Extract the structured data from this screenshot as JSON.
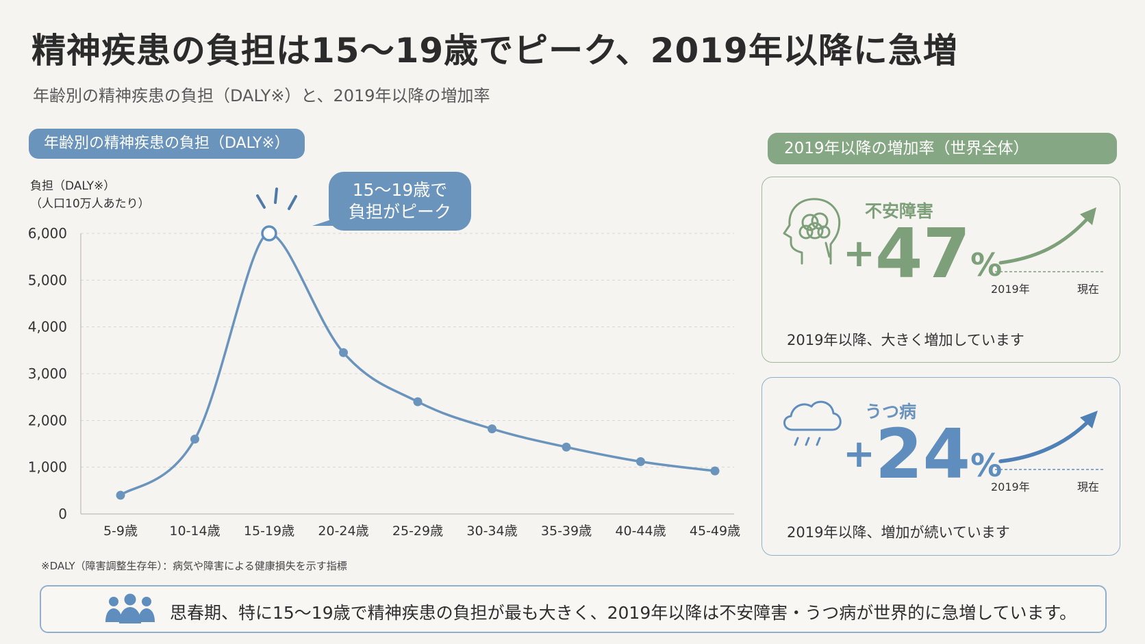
{
  "header": {
    "title": "精神疾患の負担は15～19歳でピーク、2019年以降に急増",
    "subtitle": "年齢別の精神疾患の負担（DALY※）と、2019年以降の増加率"
  },
  "left_panel": {
    "pill": "年齢別の精神疾患の負担（DALY※）",
    "ylabel_line1": "負担（DALY※）",
    "ylabel_line2": "（人口10万人あたり）",
    "callout_line1": "15～19歳で",
    "callout_line2": "負担がピーク",
    "footnote": "※DALY（障害調整生存年）：病気や障害による健康損失を示す指標"
  },
  "chart_data": {
    "type": "line",
    "categories": [
      "5-9歳",
      "10-14歳",
      "15-19歳",
      "20-24歳",
      "25-29歳",
      "30-34歳",
      "35-39歳",
      "40-44歳",
      "45-49歳"
    ],
    "values": [
      400,
      1600,
      6000,
      3450,
      2400,
      1820,
      1430,
      1120,
      920
    ],
    "ylim": [
      0,
      6000
    ],
    "yticks": [
      0,
      1000,
      2000,
      3000,
      4000,
      5000,
      6000
    ],
    "ytick_labels": [
      "0",
      "1,000",
      "2,000",
      "3,000",
      "4,000",
      "5,000",
      "6,000"
    ],
    "grid": true,
    "peak_index": 2,
    "color": "#6b94bd"
  },
  "right_panel": {
    "pill": "2019年以降の増加率（世界全体）",
    "cards": [
      {
        "label": "不安障害",
        "sign": "+",
        "number": "47",
        "unit": "%",
        "from_label": "2019年",
        "to_label": "現在",
        "desc": "2019年以降、大きく増加しています",
        "icon": "head-brain-icon",
        "color": "#7d9f79"
      },
      {
        "label": "うつ病",
        "sign": "+",
        "number": "24",
        "unit": "%",
        "from_label": "2019年",
        "to_label": "現在",
        "desc": "2019年以降、増加が続いています",
        "icon": "rain-cloud-icon",
        "color": "#5f8dbd"
      }
    ]
  },
  "summary": {
    "text": "思春期、特に15～19歳で精神疾患の負担が最も大きく、2019年以降は不安障害・うつ病が世界的に急増しています。",
    "icon": "people-group-icon"
  }
}
